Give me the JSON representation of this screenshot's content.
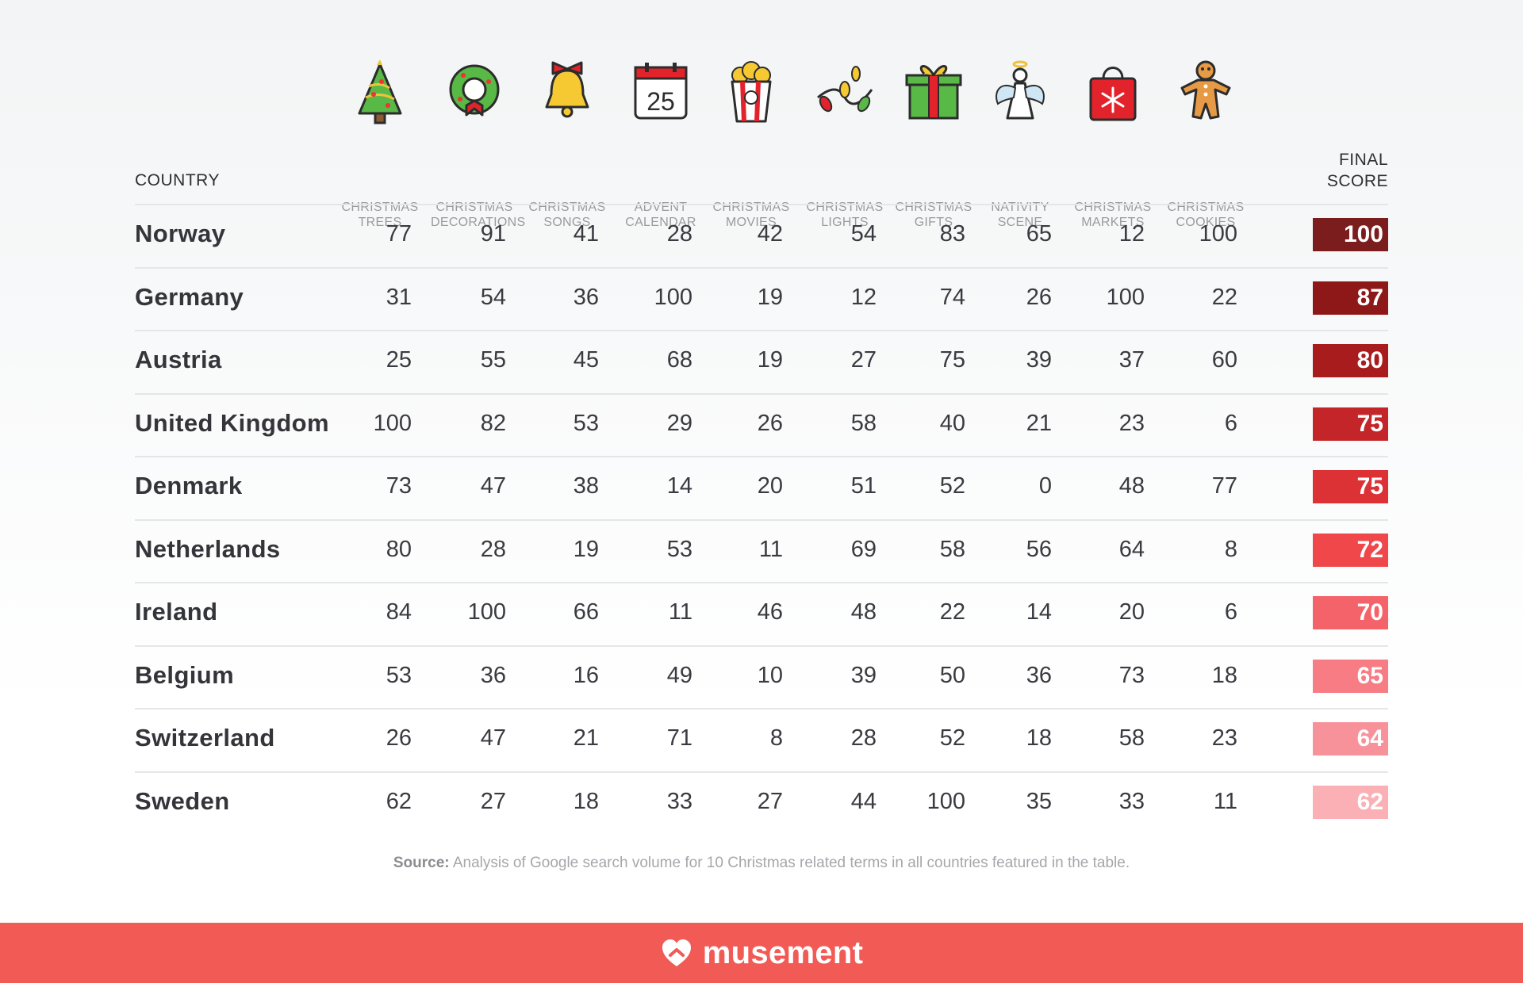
{
  "chart_data": {
    "type": "table",
    "headers": {
      "country": "COUNTRY",
      "final_score": "FINAL\nSCORE",
      "categories": [
        {
          "label": "CHRISTMAS\nTREES",
          "icon": "christmas-tree-icon"
        },
        {
          "label": "CHRISTMAS\nDECORATIONS",
          "icon": "wreath-icon"
        },
        {
          "label": "CHRISTMAS\nSONGS",
          "icon": "bell-icon"
        },
        {
          "label": "ADVENT\nCALENDAR",
          "icon": "calendar-icon"
        },
        {
          "label": "CHRISTMAS\nMOVIES",
          "icon": "popcorn-icon"
        },
        {
          "label": "CHRISTMAS\nLIGHTS",
          "icon": "string-lights-icon"
        },
        {
          "label": "CHRISTMAS\nGIFTS",
          "icon": "gift-icon"
        },
        {
          "label": "NATIVITY\nSCENE",
          "icon": "angel-icon"
        },
        {
          "label": "CHRISTMAS\nMARKETS",
          "icon": "shopping-bag-icon"
        },
        {
          "label": "CHRISTMAS\nCOOKIES",
          "icon": "gingerbread-man-icon"
        }
      ]
    },
    "rows": [
      {
        "country": "Norway",
        "values": [
          77,
          91,
          41,
          28,
          42,
          54,
          83,
          65,
          12,
          100
        ],
        "final": 100
      },
      {
        "country": "Germany",
        "values": [
          31,
          54,
          36,
          100,
          19,
          12,
          74,
          26,
          100,
          22
        ],
        "final": 87
      },
      {
        "country": "Austria",
        "values": [
          25,
          55,
          45,
          68,
          19,
          27,
          75,
          39,
          37,
          60
        ],
        "final": 80
      },
      {
        "country": "United Kingdom",
        "values": [
          100,
          82,
          53,
          29,
          26,
          58,
          40,
          21,
          23,
          6
        ],
        "final": 75
      },
      {
        "country": "Denmark",
        "values": [
          73,
          47,
          38,
          14,
          20,
          51,
          52,
          0,
          48,
          77
        ],
        "final": 75
      },
      {
        "country": "Netherlands",
        "values": [
          80,
          28,
          19,
          53,
          11,
          69,
          58,
          56,
          64,
          8
        ],
        "final": 72
      },
      {
        "country": "Ireland",
        "values": [
          84,
          100,
          66,
          11,
          46,
          48,
          22,
          14,
          20,
          6
        ],
        "final": 70
      },
      {
        "country": "Belgium",
        "values": [
          53,
          36,
          16,
          49,
          10,
          39,
          50,
          36,
          73,
          18
        ],
        "final": 65
      },
      {
        "country": "Switzerland",
        "values": [
          26,
          47,
          21,
          71,
          8,
          28,
          52,
          18,
          58,
          23
        ],
        "final": 64
      },
      {
        "country": "Sweden",
        "values": [
          62,
          27,
          18,
          33,
          27,
          44,
          100,
          35,
          33,
          11
        ],
        "final": 62
      }
    ],
    "score_colors": [
      "#7b1d1d",
      "#8e1818",
      "#a81c1e",
      "#c42528",
      "#dc3236",
      "#f0474b",
      "#f5636a",
      "#f77c84",
      "#f8929a",
      "#fab0b5"
    ]
  },
  "footnote": {
    "label": "Source:",
    "text": " Analysis of Google search volume for 10 Christmas related terms in all countries featured in the table."
  },
  "footer": {
    "brand": "musement",
    "logo_icon": "heart-logo-icon",
    "background": "#f25a55"
  }
}
